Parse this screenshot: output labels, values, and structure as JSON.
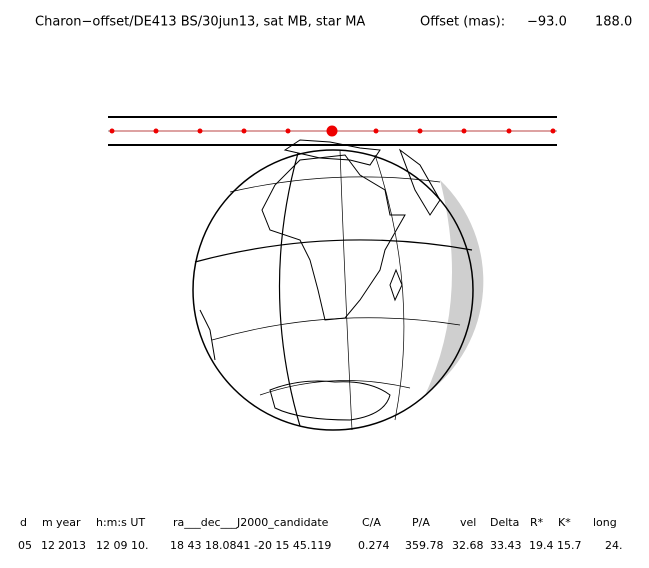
{
  "header": {
    "title": "Charon−offset/DE413 BS/30jun13, sat MB, star MA",
    "offset_label": "Offset (mas):",
    "offsets": [
      "−93.0",
      "188.0"
    ]
  },
  "table": {
    "columns": [
      "d",
      "m",
      "year",
      "h:m:s UT",
      "ra___dec___J2000_candidate",
      "C/A",
      "P/A",
      "vel",
      "Delta",
      "R*",
      "K*",
      "long"
    ],
    "rows": [
      [
        "05",
        "12",
        "2013",
        "12 09 10.",
        "18 43 18.0841  -20 15 45.119",
        "0.274",
        "359.78",
        "32.68",
        "33.43",
        "19.4",
        "15.7",
        "24."
      ]
    ]
  }
}
